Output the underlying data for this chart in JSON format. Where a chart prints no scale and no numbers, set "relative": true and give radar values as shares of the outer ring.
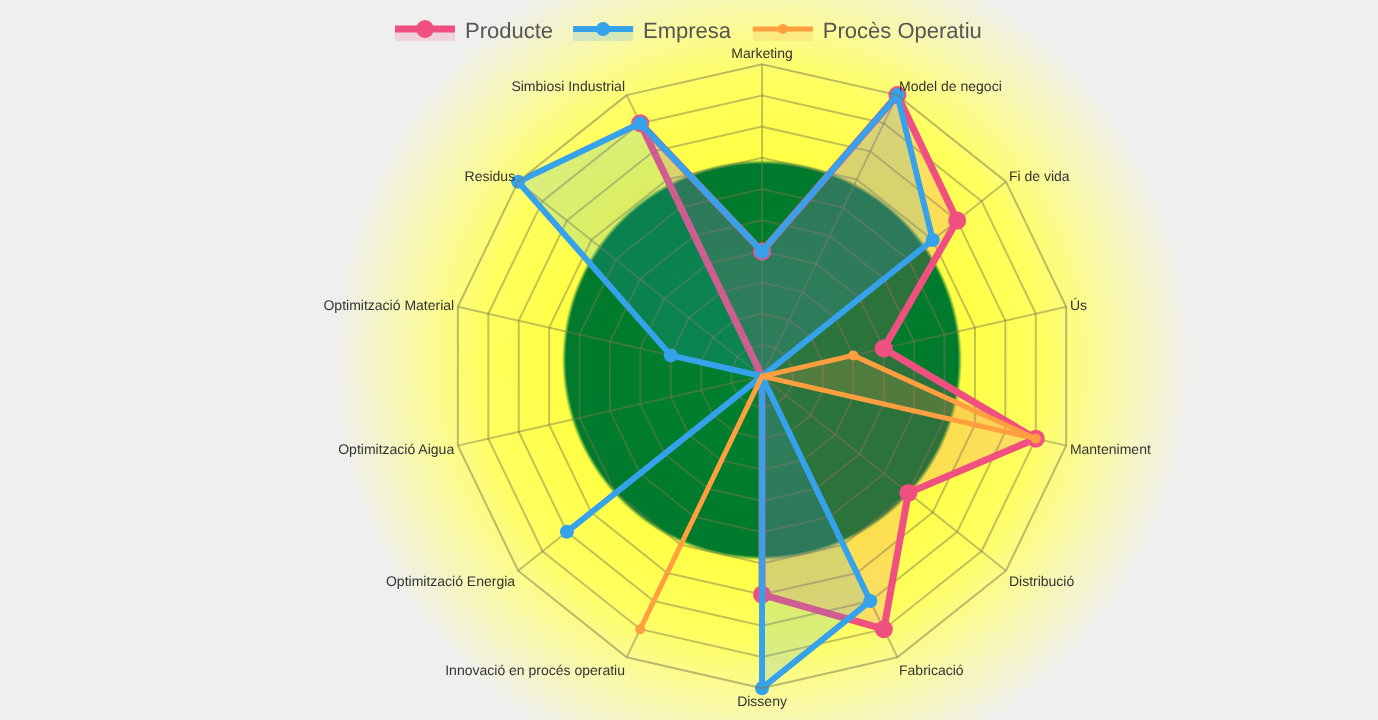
{
  "chart_data": {
    "type": "radar",
    "relative": true,
    "grid": true,
    "legend": "top",
    "marker": "circle",
    "categories": [
      "Marketing",
      "Model de negoci",
      "Fi de vida",
      "Ús",
      "Manteniment",
      "Distribució",
      "Fabricació",
      "Disseny",
      "Innovació en procés operatiu",
      "Optimització Energia",
      "Optimització Aigua",
      "Optimització Material",
      "Residus",
      "Simbiosi Industrial"
    ],
    "series": [
      {
        "name": "Producte",
        "color": "#f0507f",
        "values": [
          0.4,
          1.0,
          0.8,
          0.4,
          0.9,
          0.6,
          0.9,
          0.7,
          0,
          0,
          0,
          0,
          0,
          0.9
        ]
      },
      {
        "name": "Empresa",
        "color": "#36a2eb",
        "values": [
          0.4,
          1.0,
          0.7,
          0,
          0,
          0,
          0.8,
          1.0,
          0,
          0.8,
          0,
          0.3,
          1.0,
          0.9
        ]
      },
      {
        "name": "Procès Operatiu",
        "color": "#ff9f40",
        "values": [
          0,
          0,
          0,
          0.3,
          0.9,
          0,
          0,
          0,
          0.9,
          0,
          0,
          0,
          0,
          0
        ]
      }
    ]
  }
}
